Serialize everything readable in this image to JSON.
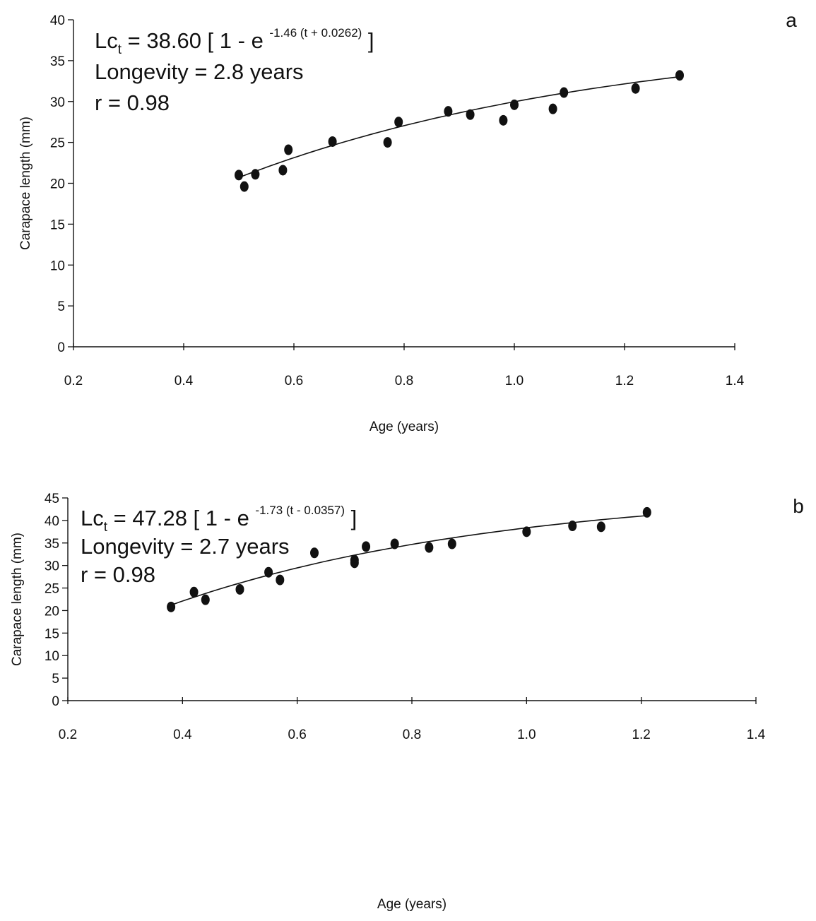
{
  "chart_data": [
    {
      "type": "scatter",
      "panel_label": "a",
      "xlabel": "Age (years)",
      "ylabel": "Carapace length (mm)",
      "xlim": [
        0.2,
        1.4
      ],
      "ylim": [
        0,
        40
      ],
      "x_ticks": [
        0.2,
        0.4,
        0.6,
        0.8,
        1.0,
        1.2,
        1.4
      ],
      "x_tick_labels": [
        "0.2",
        "0.4",
        "0.6",
        "0.8",
        "1.0",
        "1.2",
        "1.4"
      ],
      "y_ticks": [
        0,
        5,
        10,
        15,
        20,
        25,
        30,
        35,
        40
      ],
      "y_tick_labels": [
        "0",
        "5",
        "10",
        "15",
        "20",
        "25",
        "30",
        "35",
        "40"
      ],
      "grid": false,
      "legend": "none",
      "annotation": {
        "lhs_main": "Lc",
        "lhs_sub": "t",
        "rhs_before_exp": " = 38.60 [ 1 - e ",
        "exponent": "-1.46 (t + 0.0262)",
        "rhs_after_exp": " ]",
        "line2": "Longevity = 2.8 years",
        "line3": "r = 0.98"
      },
      "fit": {
        "Linf": 38.6,
        "k": 1.46,
        "t0": -0.0262,
        "x_range": [
          0.5,
          1.3
        ]
      },
      "series": [
        {
          "points": [
            [
              0.5,
              21.0
            ],
            [
              0.51,
              19.6
            ],
            [
              0.53,
              21.1
            ],
            [
              0.58,
              21.6
            ],
            [
              0.59,
              24.1
            ],
            [
              0.67,
              25.1
            ],
            [
              0.77,
              25.0
            ],
            [
              0.79,
              27.5
            ],
            [
              0.88,
              28.8
            ],
            [
              0.92,
              28.4
            ],
            [
              0.98,
              27.7
            ],
            [
              1.0,
              29.6
            ],
            [
              1.07,
              29.1
            ],
            [
              1.09,
              31.1
            ],
            [
              1.22,
              31.6
            ],
            [
              1.3,
              33.2
            ]
          ]
        }
      ]
    },
    {
      "type": "scatter",
      "panel_label": "b",
      "xlabel": "Age (years)",
      "ylabel": "Carapace length (mm)",
      "xlim": [
        0.2,
        1.4
      ],
      "ylim": [
        0,
        45
      ],
      "x_ticks": [
        0.2,
        0.4,
        0.6,
        0.8,
        1.0,
        1.2,
        1.4
      ],
      "x_tick_labels": [
        "0.2",
        "0.4",
        "0.6",
        "0.8",
        "1.0",
        "1.2",
        "1.4"
      ],
      "y_ticks": [
        0,
        5,
        10,
        15,
        20,
        25,
        30,
        35,
        40,
        45
      ],
      "y_tick_labels": [
        "0",
        "5",
        "10",
        "15",
        "20",
        "25",
        "30",
        "35",
        "40",
        "45"
      ],
      "grid": false,
      "legend": "none",
      "annotation": {
        "lhs_main": "Lc",
        "lhs_sub": "t",
        "rhs_before_exp": " = 47.28 [ 1 - e ",
        "exponent": "-1.73 (t - 0.0357)",
        "rhs_after_exp": " ]",
        "line2": "Longevity = 2.7 years",
        "line3": "r = 0.98"
      },
      "fit": {
        "Linf": 47.28,
        "k": 1.73,
        "t0": 0.0357,
        "x_range": [
          0.38,
          1.21
        ]
      },
      "series": [
        {
          "points": [
            [
              0.38,
              20.8
            ],
            [
              0.42,
              24.1
            ],
            [
              0.44,
              22.4
            ],
            [
              0.5,
              24.7
            ],
            [
              0.55,
              28.5
            ],
            [
              0.57,
              26.8
            ],
            [
              0.63,
              32.8
            ],
            [
              0.7,
              31.2
            ],
            [
              0.7,
              30.6
            ],
            [
              0.72,
              34.2
            ],
            [
              0.77,
              34.8
            ],
            [
              0.83,
              34.0
            ],
            [
              0.87,
              34.8
            ],
            [
              1.0,
              37.5
            ],
            [
              1.08,
              38.8
            ],
            [
              1.13,
              38.6
            ],
            [
              1.21,
              41.8
            ]
          ]
        }
      ]
    }
  ]
}
